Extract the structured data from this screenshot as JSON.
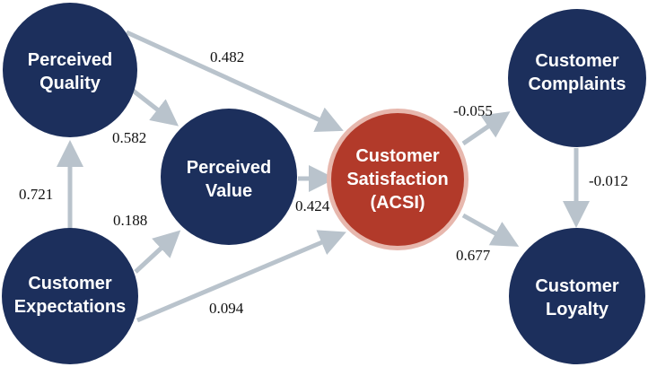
{
  "colors": {
    "node_fill": "#1c2f5c",
    "center_fill": "#b23a2a",
    "center_ring": "#e7b7ad",
    "arrow": "#b9c3cc",
    "coefficient_text": "#111111"
  },
  "nodes": {
    "perceived_quality": [
      "Perceived",
      "Quality"
    ],
    "perceived_value": [
      "Perceived",
      "Value"
    ],
    "customer_expectations": [
      "Customer",
      "Expectations"
    ],
    "customer_satisfaction": [
      "Customer",
      "Satisfaction",
      "(ACSI)"
    ],
    "customer_complaints": [
      "Customer",
      "Complaints"
    ],
    "customer_loyalty": [
      "Customer",
      "Loyalty"
    ]
  },
  "coefficients": {
    "quality_to_satisfaction": "0.482",
    "quality_to_value": "0.582",
    "expectations_to_quality": "0.721",
    "expectations_to_value": "0.188",
    "value_to_satisfaction": "0.424",
    "expectations_to_satisfaction": "0.094",
    "satisfaction_to_complaints": "-0.055",
    "complaints_to_loyalty": "-0.012",
    "satisfaction_to_loyalty": "0.677"
  }
}
